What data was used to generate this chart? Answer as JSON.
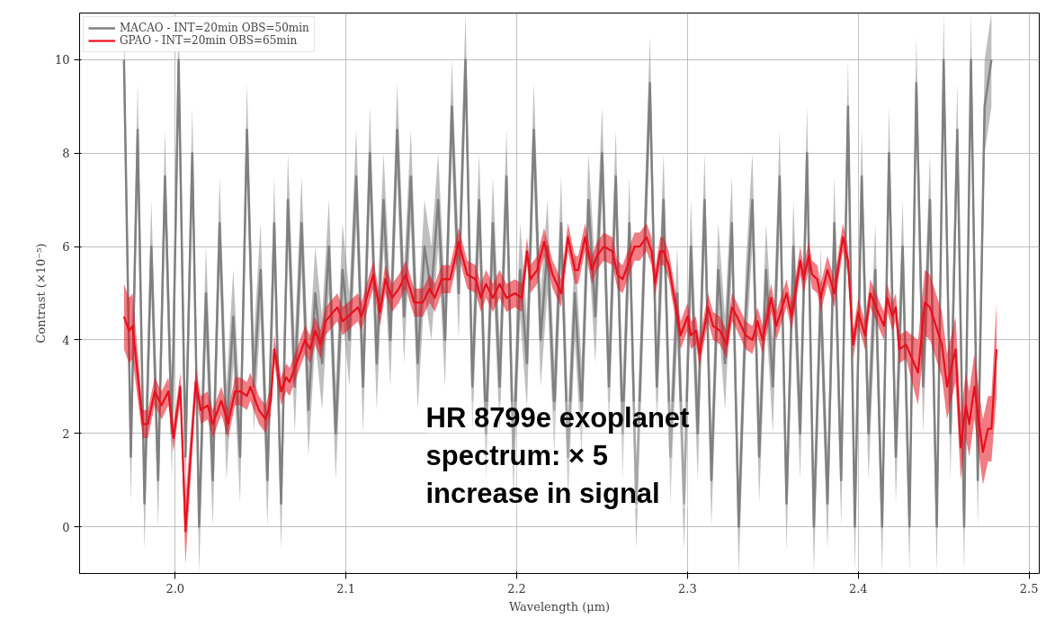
{
  "chart_data": {
    "type": "line",
    "xlabel": "Wavelength (μm)",
    "ylabel": "Contrast (×10⁻⁵)",
    "xlim": [
      1.944,
      2.506
    ],
    "ylim": [
      -1,
      11
    ],
    "xticks": [
      {
        "value": 2,
        "label": "2.0"
      },
      2.1,
      2.2,
      2.3,
      2.4,
      2.5
    ],
    "yticks": [
      0,
      2,
      4,
      6,
      8,
      10
    ],
    "grid": true,
    "legend": "top left",
    "marker": "none",
    "line_style": "solid",
    "annotations": [
      "HR 8799e exoplanet\nspectrum: × 5\nincrease in signal"
    ],
    "series": [
      {
        "name": "MACAO - INT=20min OBS=50min",
        "color": "#808080",
        "x": [
          1.97,
          1.974,
          1.978,
          1.982,
          1.986,
          1.99,
          1.994,
          1.998,
          2.002,
          2.006,
          2.01,
          2.014,
          2.018,
          2.022,
          2.026,
          2.03,
          2.034,
          2.038,
          2.042,
          2.046,
          2.05,
          2.054,
          2.058,
          2.062,
          2.066,
          2.07,
          2.074,
          2.078,
          2.082,
          2.086,
          2.09,
          2.094,
          2.098,
          2.102,
          2.106,
          2.11,
          2.114,
          2.118,
          2.122,
          2.126,
          2.13,
          2.134,
          2.138,
          2.142,
          2.146,
          2.15,
          2.154,
          2.158,
          2.162,
          2.166,
          2.17,
          2.174,
          2.178,
          2.182,
          2.186,
          2.19,
          2.194,
          2.198,
          2.202,
          2.206,
          2.21,
          2.214,
          2.218,
          2.222,
          2.226,
          2.23,
          2.234,
          2.238,
          2.242,
          2.246,
          2.25,
          2.254,
          2.258,
          2.262,
          2.266,
          2.27,
          2.274,
          2.278,
          2.282,
          2.286,
          2.29,
          2.294,
          2.298,
          2.302,
          2.306,
          2.31,
          2.314,
          2.318,
          2.322,
          2.326,
          2.33,
          2.334,
          2.338,
          2.342,
          2.346,
          2.35,
          2.354,
          2.358,
          2.362,
          2.366,
          2.37,
          2.374,
          2.378,
          2.382,
          2.386,
          2.39,
          2.394,
          2.398,
          2.402,
          2.406,
          2.41,
          2.414,
          2.418,
          2.422,
          2.426,
          2.43,
          2.434,
          2.438,
          2.442,
          2.446,
          2.45,
          2.454,
          2.458,
          2.462,
          2.466,
          2.47,
          2.474,
          2.478
        ],
        "values": [
          10.0,
          1.5,
          8.5,
          0.5,
          6.0,
          1.0,
          7.5,
          2.0,
          10.0,
          1.5,
          8.0,
          0.0,
          5.0,
          1.0,
          6.5,
          2.0,
          4.5,
          1.5,
          8.5,
          3.0,
          5.5,
          1.0,
          6.5,
          0.5,
          7.0,
          3.0,
          6.5,
          2.5,
          5.0,
          3.5,
          6.0,
          2.0,
          5.5,
          4.0,
          7.5,
          3.0,
          8.0,
          3.5,
          7.0,
          4.0,
          8.5,
          4.5,
          7.5,
          3.5,
          6.0,
          5.0,
          7.0,
          4.0,
          9.0,
          5.0,
          10.0,
          3.0,
          7.0,
          2.0,
          6.5,
          3.0,
          7.5,
          1.5,
          5.5,
          3.5,
          8.5,
          4.0,
          6.0,
          2.5,
          6.5,
          1.5,
          5.0,
          2.5,
          7.0,
          4.5,
          8.0,
          3.0,
          7.5,
          2.0,
          6.5,
          0.5,
          5.0,
          9.5,
          3.0,
          7.0,
          1.5,
          5.0,
          0.5,
          6.0,
          2.0,
          7.0,
          1.0,
          5.5,
          3.5,
          6.5,
          0.0,
          4.5,
          7.0,
          1.5,
          5.5,
          3.0,
          7.5,
          0.5,
          6.0,
          2.0,
          8.0,
          0.0,
          5.0,
          0.5,
          6.5,
          1.0,
          9.0,
          0.0,
          7.5,
          2.0,
          5.5,
          0.0,
          8.0,
          1.5,
          6.0,
          0.0,
          9.5,
          3.0,
          7.0,
          0.0,
          10.0,
          2.0,
          8.5,
          0.0,
          10.0,
          1.0,
          9.0,
          10.0
        ],
        "lower": [
          9.0,
          0.5,
          7.5,
          -0.5,
          5.0,
          0.0,
          6.5,
          1.0,
          9.0,
          0.5,
          7.0,
          -1.0,
          4.0,
          0.0,
          5.5,
          1.0,
          3.5,
          0.5,
          7.5,
          2.0,
          4.5,
          0.0,
          5.5,
          -0.5,
          6.0,
          2.0,
          5.5,
          1.5,
          4.0,
          2.5,
          5.0,
          1.0,
          4.5,
          3.0,
          6.5,
          2.0,
          7.0,
          2.5,
          6.0,
          3.0,
          7.5,
          3.5,
          6.5,
          2.5,
          5.0,
          4.0,
          6.0,
          3.0,
          8.0,
          4.0,
          9.0,
          2.0,
          6.0,
          1.0,
          5.5,
          2.0,
          6.5,
          0.5,
          4.5,
          2.5,
          7.5,
          3.0,
          5.0,
          1.5,
          5.5,
          0.5,
          4.0,
          1.5,
          6.0,
          3.5,
          7.0,
          2.0,
          6.5,
          1.0,
          5.5,
          -0.5,
          4.0,
          8.5,
          2.0,
          6.0,
          0.5,
          4.0,
          -0.5,
          5.0,
          1.0,
          6.0,
          0.0,
          4.5,
          2.5,
          5.5,
          -1.0,
          3.5,
          6.0,
          0.5,
          4.5,
          2.0,
          6.5,
          -0.5,
          5.0,
          1.0,
          7.0,
          -1.0,
          4.0,
          -0.5,
          5.5,
          0.0,
          8.0,
          -1.0,
          6.5,
          1.0,
          4.5,
          -1.0,
          7.0,
          0.5,
          5.0,
          -1.0,
          8.5,
          2.0,
          6.0,
          -1.0,
          9.0,
          1.0,
          7.5,
          -1.0,
          9.0,
          0.0,
          8.0,
          9.0
        ],
        "upper": [
          11.0,
          2.5,
          9.5,
          1.5,
          7.0,
          2.0,
          8.5,
          3.0,
          11.0,
          2.5,
          9.0,
          1.0,
          6.0,
          2.0,
          7.5,
          3.0,
          5.5,
          2.5,
          9.5,
          4.0,
          6.5,
          2.0,
          7.5,
          1.5,
          8.0,
          4.0,
          7.5,
          3.5,
          6.0,
          4.5,
          7.0,
          3.0,
          6.5,
          5.0,
          8.5,
          4.0,
          9.0,
          4.5,
          8.0,
          5.0,
          9.5,
          5.5,
          8.5,
          4.5,
          7.0,
          6.0,
          8.0,
          5.0,
          10.0,
          6.0,
          11.0,
          4.0,
          8.0,
          3.0,
          7.5,
          4.0,
          8.5,
          2.5,
          6.5,
          4.5,
          9.5,
          5.0,
          7.0,
          3.5,
          7.5,
          2.5,
          6.0,
          3.5,
          8.0,
          5.5,
          9.0,
          4.0,
          8.5,
          3.0,
          7.5,
          1.5,
          6.0,
          10.5,
          4.0,
          8.0,
          2.5,
          6.0,
          1.5,
          7.0,
          3.0,
          8.0,
          2.0,
          6.5,
          4.5,
          7.5,
          1.0,
          5.5,
          8.0,
          2.5,
          6.5,
          4.0,
          8.5,
          1.5,
          7.0,
          3.0,
          9.0,
          1.0,
          6.0,
          1.5,
          7.5,
          2.0,
          10.0,
          1.0,
          8.5,
          3.0,
          6.5,
          1.0,
          9.0,
          2.5,
          7.0,
          1.0,
          10.5,
          4.0,
          8.0,
          1.0,
          11.0,
          3.0,
          9.5,
          1.0,
          11.0,
          2.0,
          10.0,
          11.0
        ]
      },
      {
        "name": "GPAO - INT=20min OBS=65min",
        "color": "#e8101e",
        "x": [
          1.97,
          1.973,
          1.975,
          1.981,
          1.984,
          1.988,
          1.992,
          1.996,
          1.999,
          2.003,
          2.006,
          2.012,
          2.015,
          2.019,
          2.022,
          2.027,
          2.031,
          2.035,
          2.038,
          2.042,
          2.044,
          2.049,
          2.053,
          2.056,
          2.058,
          2.062,
          2.065,
          2.067,
          2.072,
          2.076,
          2.079,
          2.082,
          2.085,
          2.088,
          2.095,
          2.098,
          2.101,
          2.107,
          2.109,
          2.116,
          2.12,
          2.123,
          2.127,
          2.131,
          2.135,
          2.14,
          2.145,
          2.149,
          2.152,
          2.156,
          2.161,
          2.166,
          2.171,
          2.176,
          2.179,
          2.182,
          2.186,
          2.19,
          2.194,
          2.199,
          2.203,
          2.206,
          2.208,
          2.212,
          2.216,
          2.221,
          2.226,
          2.23,
          2.234,
          2.236,
          2.24,
          2.244,
          2.247,
          2.251,
          2.256,
          2.259,
          2.262,
          2.265,
          2.269,
          2.272,
          2.276,
          2.279,
          2.281,
          2.284,
          2.286,
          2.289,
          2.296,
          2.3,
          2.302,
          2.305,
          2.307,
          2.312,
          2.315,
          2.319,
          2.323,
          2.326,
          2.329,
          2.334,
          2.338,
          2.341,
          2.344,
          2.349,
          2.352,
          2.358,
          2.361,
          2.366,
          2.368,
          2.371,
          2.373,
          2.376,
          2.378,
          2.382,
          2.386,
          2.391,
          2.394,
          2.397,
          2.4,
          2.404,
          2.407,
          2.415,
          2.417,
          2.42,
          2.422,
          2.424,
          2.428,
          2.435,
          2.439,
          2.442,
          2.449,
          2.452,
          2.457,
          2.46,
          2.463,
          2.465,
          2.468,
          2.473,
          2.476,
          2.478,
          2.481
        ],
        "values": [
          4.5,
          4.2,
          4.3,
          2.2,
          2.2,
          2.9,
          2.6,
          2.9,
          1.9,
          3.0,
          -0.1,
          3.1,
          2.5,
          2.6,
          2.2,
          2.7,
          2.2,
          2.9,
          2.9,
          2.8,
          3.0,
          2.5,
          2.3,
          2.7,
          3.8,
          2.9,
          3.2,
          3.1,
          3.6,
          4.0,
          3.8,
          4.2,
          3.9,
          4.4,
          4.7,
          4.4,
          4.5,
          4.7,
          4.5,
          5.4,
          4.6,
          5.3,
          4.9,
          5.1,
          5.4,
          4.8,
          4.8,
          5.1,
          4.9,
          5.3,
          5.3,
          6.1,
          5.4,
          5.3,
          4.9,
          5.2,
          4.9,
          5.2,
          4.9,
          5.0,
          4.9,
          5.9,
          5.3,
          5.5,
          6.1,
          5.4,
          5.0,
          6.2,
          5.5,
          5.5,
          6.2,
          5.5,
          5.8,
          6.0,
          5.9,
          5.4,
          5.3,
          5.6,
          6.0,
          6.0,
          6.2,
          5.9,
          5.2,
          5.9,
          5.9,
          5.6,
          4.1,
          4.5,
          4.1,
          4.2,
          3.7,
          4.7,
          4.3,
          4.2,
          3.9,
          4.7,
          4.5,
          4.1,
          4.0,
          4.4,
          4.0,
          4.9,
          4.3,
          5.0,
          4.5,
          5.7,
          5.3,
          5.8,
          5.4,
          5.3,
          4.9,
          5.5,
          5.0,
          6.2,
          5.7,
          3.9,
          4.6,
          4.1,
          5.0,
          4.3,
          4.9,
          4.5,
          4.7,
          3.8,
          3.9,
          3.3,
          4.8,
          4.7,
          3.9,
          3.0,
          3.8,
          1.7,
          2.6,
          2.2,
          3.0,
          1.6,
          2.1,
          2.1,
          3.8
        ],
        "lower": [
          3.8,
          3.5,
          3.6,
          1.9,
          1.9,
          2.6,
          2.3,
          2.6,
          1.6,
          2.7,
          -0.8,
          2.8,
          2.2,
          2.3,
          1.9,
          2.4,
          1.9,
          2.6,
          2.6,
          2.5,
          2.7,
          2.2,
          2.0,
          2.4,
          3.5,
          2.6,
          2.9,
          2.8,
          3.3,
          3.7,
          3.5,
          3.9,
          3.6,
          4.1,
          4.4,
          4.1,
          4.2,
          4.4,
          4.2,
          5.1,
          4.3,
          5.0,
          4.6,
          4.8,
          5.1,
          4.5,
          4.5,
          4.8,
          4.6,
          5.0,
          5.0,
          5.8,
          5.1,
          5.0,
          4.6,
          4.9,
          4.6,
          4.9,
          4.6,
          4.7,
          4.6,
          5.6,
          5.0,
          5.2,
          5.8,
          5.1,
          4.7,
          5.9,
          5.2,
          5.2,
          5.9,
          5.2,
          5.5,
          5.7,
          5.6,
          5.1,
          5.0,
          5.3,
          5.7,
          5.7,
          5.9,
          5.6,
          4.9,
          5.6,
          5.6,
          5.3,
          3.8,
          4.2,
          3.8,
          3.9,
          3.4,
          4.4,
          4.0,
          3.9,
          3.6,
          4.4,
          4.2,
          3.8,
          3.7,
          4.1,
          3.7,
          4.6,
          4.0,
          4.7,
          4.2,
          5.4,
          5.0,
          5.5,
          5.1,
          5.0,
          4.6,
          5.2,
          4.7,
          5.9,
          5.4,
          3.6,
          4.3,
          3.8,
          4.7,
          4.0,
          4.6,
          4.2,
          4.4,
          3.5,
          3.6,
          2.6,
          4.1,
          4.0,
          3.2,
          2.3,
          3.1,
          1.0,
          1.9,
          1.5,
          2.3,
          0.9,
          1.4,
          1.4,
          2.8
        ],
        "upper": [
          5.2,
          4.9,
          5.0,
          2.5,
          2.5,
          3.2,
          2.9,
          3.2,
          2.2,
          3.3,
          0.6,
          3.4,
          2.8,
          2.9,
          2.5,
          3.0,
          2.5,
          3.2,
          3.2,
          3.1,
          3.3,
          2.8,
          2.6,
          3.0,
          4.1,
          3.2,
          3.5,
          3.4,
          3.9,
          4.3,
          4.1,
          4.5,
          4.2,
          4.7,
          5.0,
          4.7,
          4.8,
          5.0,
          4.8,
          5.7,
          4.9,
          5.6,
          5.2,
          5.4,
          5.7,
          5.1,
          5.1,
          5.4,
          5.2,
          5.6,
          5.6,
          6.4,
          5.7,
          5.6,
          5.2,
          5.5,
          5.2,
          5.5,
          5.2,
          5.3,
          5.2,
          6.2,
          5.6,
          5.8,
          6.4,
          5.7,
          5.3,
          6.5,
          5.8,
          5.8,
          6.5,
          5.8,
          6.1,
          6.3,
          6.2,
          5.7,
          5.6,
          5.9,
          6.3,
          6.3,
          6.5,
          6.2,
          5.5,
          6.2,
          6.2,
          5.9,
          4.4,
          4.8,
          4.4,
          4.5,
          4.0,
          5.0,
          4.6,
          4.5,
          4.2,
          5.0,
          4.8,
          4.4,
          4.3,
          4.7,
          4.3,
          5.2,
          4.6,
          5.3,
          4.8,
          6.0,
          5.6,
          6.1,
          5.7,
          5.6,
          5.2,
          5.8,
          5.3,
          6.5,
          6.0,
          4.2,
          4.9,
          4.4,
          5.3,
          4.6,
          5.2,
          4.8,
          5.0,
          4.1,
          4.2,
          4.0,
          5.5,
          5.4,
          4.6,
          3.7,
          4.5,
          2.4,
          3.3,
          2.9,
          3.7,
          2.3,
          2.8,
          2.8,
          4.8
        ]
      }
    ]
  }
}
